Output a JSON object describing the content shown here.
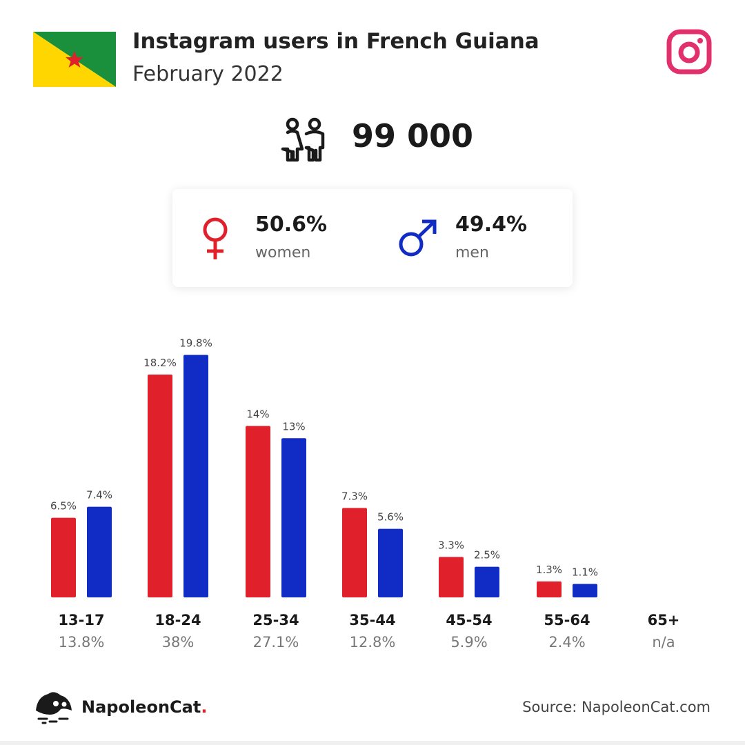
{
  "header": {
    "title": "Instagram users in French Guiana",
    "subtitle": "February 2022",
    "flag_icon": "french-guiana-flag-icon",
    "platform_icon": "instagram-icon"
  },
  "summary": {
    "total": "99 000",
    "users_icon": "users-icon"
  },
  "gender": {
    "women": {
      "pct": "50.6%",
      "label": "women",
      "icon": "female-symbol-icon"
    },
    "men": {
      "pct": "49.4%",
      "label": "men",
      "icon": "male-symbol-icon"
    }
  },
  "chart_data": {
    "type": "bar",
    "categories": [
      "13-17",
      "18-24",
      "25-34",
      "35-44",
      "45-54",
      "55-64",
      "65+"
    ],
    "category_totals": [
      "13.8%",
      "38%",
      "27.1%",
      "12.8%",
      "5.9%",
      "2.4%",
      "n/a"
    ],
    "series": [
      {
        "name": "women",
        "color": "#e0202a",
        "values": [
          6.5,
          18.2,
          14,
          7.3,
          3.3,
          1.3,
          null
        ],
        "labels": [
          "6.5%",
          "18.2%",
          "14%",
          "7.3%",
          "3.3%",
          "1.3%",
          ""
        ]
      },
      {
        "name": "men",
        "color": "#102cc4",
        "values": [
          7.4,
          19.8,
          13,
          5.6,
          2.5,
          1.1,
          null
        ],
        "labels": [
          "7.4%",
          "19.8%",
          "13%",
          "5.6%",
          "2.5%",
          "1.1%",
          ""
        ]
      }
    ]
  },
  "footer": {
    "brand": "NapoleonCat",
    "brand_dot": ".",
    "logo_icon": "napoleoncat-logo-icon",
    "source": "Source: NapoleonCat.com"
  },
  "colors": {
    "women": "#e0202a",
    "men": "#102cc4",
    "instagram": "#e1306c"
  }
}
